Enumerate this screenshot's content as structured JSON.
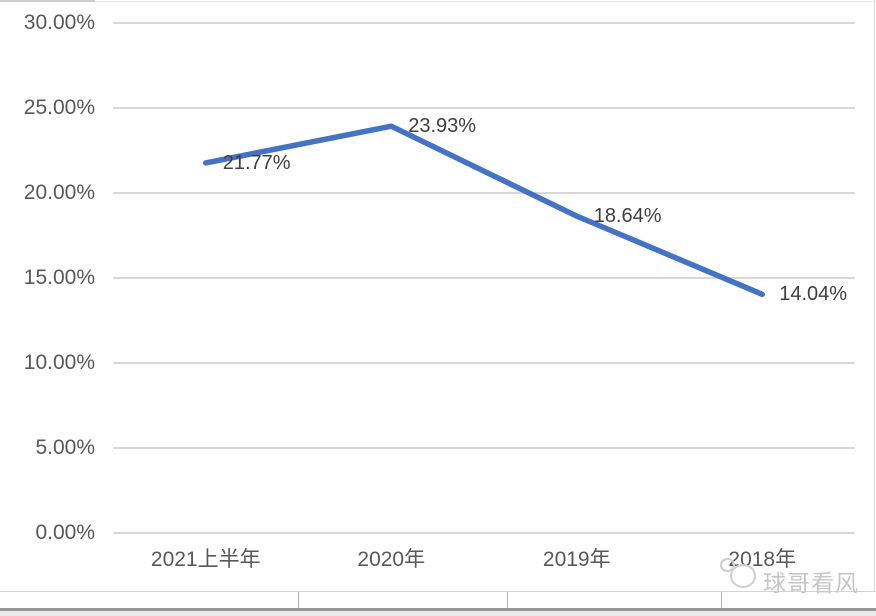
{
  "chart_data": {
    "type": "line",
    "categories": [
      "2021上半年",
      "2020年",
      "2019年",
      "2018年"
    ],
    "series": [
      {
        "name": "series-1",
        "values": [
          21.77,
          23.93,
          18.64,
          14.04
        ]
      }
    ],
    "data_labels": [
      "21.77%",
      "23.93%",
      "18.64%",
      "14.04%"
    ],
    "y_ticks": [
      "30.00%",
      "25.00%",
      "20.00%",
      "15.00%",
      "10.00%",
      "5.00%",
      "0.00%"
    ],
    "ylim": [
      0,
      30
    ],
    "grid": true,
    "legend": "none",
    "title": "",
    "xlabel": "",
    "ylabel": "",
    "line_color": "#4472C4"
  },
  "colors": {
    "line": "#4472C4",
    "grid": "#d8d8d8",
    "tick_text": "#595959",
    "data_label_text": "#404040",
    "watermark": "#c9c9c9"
  },
  "watermark": {
    "text": "球哥看风",
    "logo": "cartoon-face-logo"
  }
}
